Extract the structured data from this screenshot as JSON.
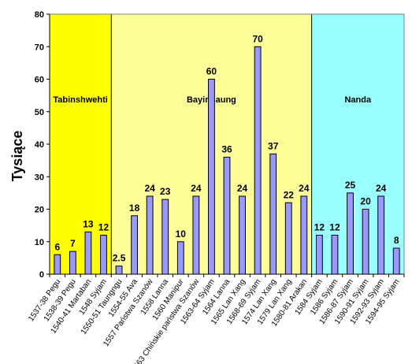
{
  "chart_data": {
    "type": "bar",
    "ylabel": "Tysiące",
    "xlabel": "",
    "title": "",
    "ylim": [
      0,
      80
    ],
    "yticks": [
      0,
      10,
      20,
      30,
      40,
      50,
      60,
      70,
      80
    ],
    "grid": false,
    "bar_color": "#9999ff",
    "categories": [
      "1537-38 Pegu",
      "1538-39 Pegu",
      "1540-41 Martaban",
      "1548 Syjam",
      "1550-51 Taungngu",
      "1554-55 Ava",
      "1557 Państwa Szanów",
      "1558 Lanna",
      "1560 Manipur",
      "1563 Chińskie państwa Szanów",
      "1563-64 Syjam",
      "1564 Lanna",
      "1565 Lan Xang",
      "1568-69 Syjam",
      "1574 Lan Xang",
      "1579 Lan Xang",
      "1580-81 Arakan",
      "1584 Syjam",
      "1586 Syjam",
      "1586-87 Syjam",
      "1590-91 Syjam",
      "1592-93 Syjam",
      "1594-95 Syjam"
    ],
    "values": [
      6,
      7,
      13,
      12,
      2.5,
      18,
      24,
      23,
      10,
      24,
      60,
      36,
      24,
      70,
      37,
      22,
      24,
      12,
      12,
      25,
      20,
      24,
      8
    ],
    "data_labels": [
      "6",
      "7",
      "13",
      "12",
      "2.5",
      "18",
      "24",
      "23",
      "10",
      "24",
      "60",
      "36",
      "24",
      "70",
      "37",
      "22",
      "24",
      "12",
      "12",
      "25",
      "20",
      "24",
      "8"
    ],
    "eras": [
      {
        "label": "Tabinshwehti",
        "start": 0,
        "end": 3,
        "color": "#ffff00"
      },
      {
        "label": "Bayinnaung",
        "start": 4,
        "end": 16,
        "color": "#ffff99"
      },
      {
        "label": "Nanda",
        "start": 17,
        "end": 22,
        "color": "#99ffff"
      }
    ]
  }
}
